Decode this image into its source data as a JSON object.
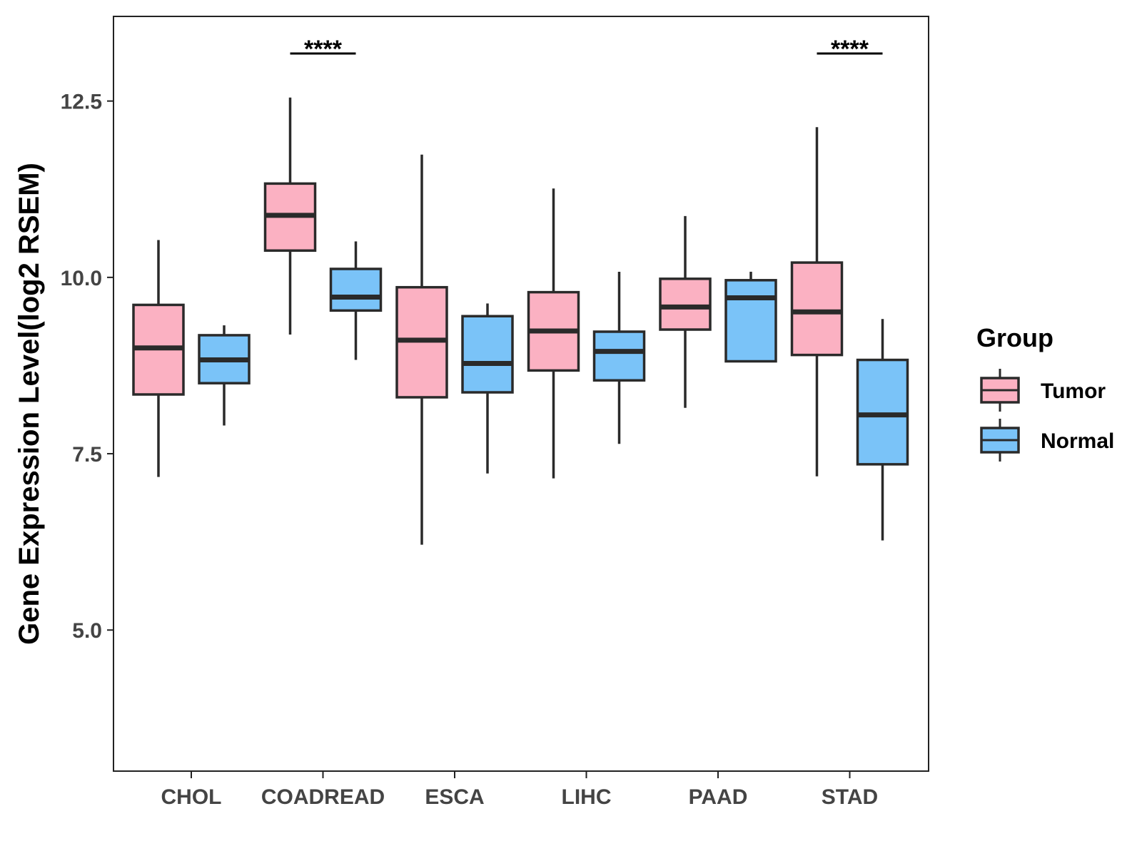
{
  "chart_data": {
    "type": "boxplot",
    "title": "",
    "xlabel": "",
    "ylabel": "Gene Expression Level(log2 RSEM)",
    "ylim": [
      3.0,
      13.7
    ],
    "yticks": [
      5.0,
      7.5,
      10.0,
      12.5
    ],
    "ytick_labels": [
      "5.0",
      "7.5",
      "10.0",
      "12.5"
    ],
    "categories": [
      "CHOL",
      "COADREAD",
      "ESCA",
      "LIHC",
      "PAAD",
      "STAD"
    ],
    "legend": {
      "title": "Group",
      "position": "right"
    },
    "series": [
      {
        "name": "Tumor",
        "color": "#FBB1C2",
        "boxes": [
          {
            "category": "CHOL",
            "min": 7.17,
            "q1": 8.34,
            "median": 9.0,
            "q3": 9.61,
            "max": 10.53
          },
          {
            "category": "COADREAD",
            "min": 9.19,
            "q1": 10.38,
            "median": 10.88,
            "q3": 11.33,
            "max": 12.55
          },
          {
            "category": "ESCA",
            "min": 6.21,
            "q1": 8.3,
            "median": 9.11,
            "q3": 9.86,
            "max": 11.74
          },
          {
            "category": "LIHC",
            "min": 7.15,
            "q1": 8.68,
            "median": 9.24,
            "q3": 9.79,
            "max": 11.26
          },
          {
            "category": "PAAD",
            "min": 8.15,
            "q1": 9.26,
            "median": 9.58,
            "q3": 9.98,
            "max": 10.87
          },
          {
            "category": "STAD",
            "min": 7.18,
            "q1": 8.9,
            "median": 9.51,
            "q3": 10.21,
            "max": 12.13
          }
        ]
      },
      {
        "name": "Normal",
        "color": "#7AC3F8",
        "boxes": [
          {
            "category": "CHOL",
            "min": 7.9,
            "q1": 8.5,
            "median": 8.83,
            "q3": 9.18,
            "max": 9.32
          },
          {
            "category": "COADREAD",
            "min": 8.83,
            "q1": 9.53,
            "median": 9.72,
            "q3": 10.12,
            "max": 10.51
          },
          {
            "category": "ESCA",
            "min": 7.22,
            "q1": 8.37,
            "median": 8.78,
            "q3": 9.45,
            "max": 9.63
          },
          {
            "category": "LIHC",
            "min": 7.64,
            "q1": 8.54,
            "median": 8.95,
            "q3": 9.23,
            "max": 10.08
          },
          {
            "category": "PAAD",
            "min": 8.81,
            "q1": 8.81,
            "median": 9.71,
            "q3": 9.96,
            "max": 10.08
          },
          {
            "category": "STAD",
            "min": 6.27,
            "q1": 7.35,
            "median": 8.05,
            "q3": 8.83,
            "max": 9.41
          }
        ]
      }
    ],
    "annotations": [
      {
        "category": "COADREAD",
        "label": "****"
      },
      {
        "category": "STAD",
        "label": "****"
      }
    ]
  }
}
